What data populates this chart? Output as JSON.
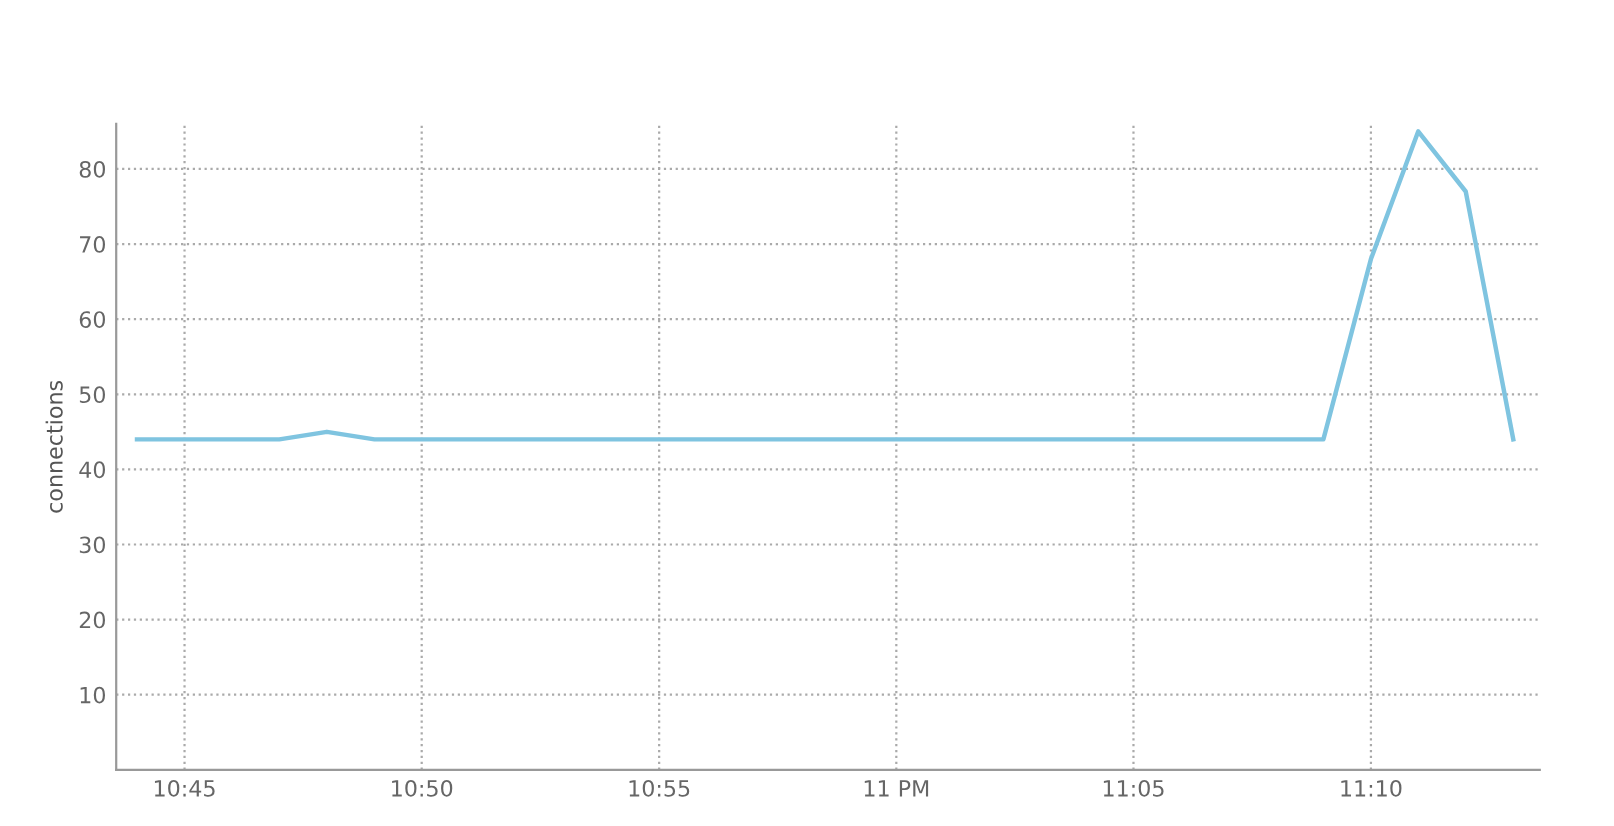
{
  "chart_data": {
    "type": "line",
    "ylabel": "connections",
    "x": [
      10.7333,
      10.7833,
      10.8,
      10.8167,
      11.15,
      11.1667,
      11.1833,
      11.2,
      11.2167
    ],
    "series": [
      {
        "color": "#7fc4e0",
        "values": [
          44,
          44,
          45,
          44,
          44,
          68,
          85,
          77,
          44
        ]
      }
    ],
    "xlim": [
      10.726,
      11.226
    ],
    "xticks": [
      {
        "value": 10.75,
        "label": "10:45"
      },
      {
        "value": 10.8333,
        "label": "10:50"
      },
      {
        "value": 10.9167,
        "label": "10:55"
      },
      {
        "value": 11.0,
        "label": "11 PM"
      },
      {
        "value": 11.0833,
        "label": "11:05"
      },
      {
        "value": 11.1667,
        "label": "11:10"
      }
    ],
    "ylim": [
      0,
      86
    ],
    "yticks": [
      10,
      20,
      30,
      40,
      50,
      60,
      70,
      80
    ],
    "grid": true,
    "marker": "none",
    "line_style": "solid"
  }
}
